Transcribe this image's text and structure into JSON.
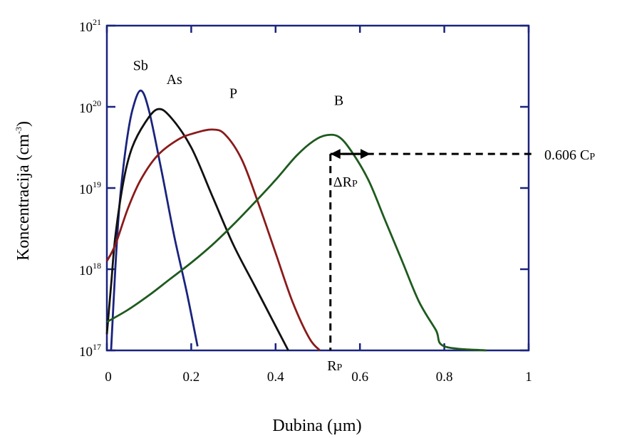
{
  "chart_data": {
    "type": "line",
    "title": "",
    "xlabel": "Dubina (µm)",
    "ylabel": "Koncentracija (cm⁻³)",
    "ylabel_parts": {
      "main": "Koncentracija (cm",
      "exp": "-3",
      "close": ")"
    },
    "yscale": "log",
    "xlim": [
      0,
      1
    ],
    "ylim": [
      1e+17,
      1e+21
    ],
    "x_ticks": [
      {
        "value": 0,
        "label": "0"
      },
      {
        "value": 0.2,
        "label": "0.2"
      },
      {
        "value": 0.4,
        "label": "0.4"
      },
      {
        "value": 0.6,
        "label": "0.6"
      },
      {
        "value": 0.8,
        "label": "0.8"
      },
      {
        "value": 1,
        "label": "1"
      }
    ],
    "y_ticks": [
      {
        "value": 17,
        "base": "10",
        "exp": "17"
      },
      {
        "value": 18,
        "base": "10",
        "exp": "18"
      },
      {
        "value": 19,
        "base": "10",
        "exp": "19"
      },
      {
        "value": 20,
        "base": "10",
        "exp": "20"
      },
      {
        "value": 21,
        "base": "10",
        "exp": "21"
      }
    ],
    "grid": false,
    "legend": "none",
    "series": [
      {
        "name": "Sb",
        "color": "#1a237e",
        "label_x": 0.08,
        "label_y_log": 20.45,
        "points": [
          [
            0.01,
            17.0
          ],
          [
            0.02,
            18.0
          ],
          [
            0.03,
            18.8
          ],
          [
            0.045,
            19.5
          ],
          [
            0.06,
            19.95
          ],
          [
            0.08,
            20.2
          ],
          [
            0.1,
            19.95
          ],
          [
            0.13,
            19.2
          ],
          [
            0.16,
            18.4
          ],
          [
            0.19,
            17.7
          ],
          [
            0.215,
            17.05
          ]
        ]
      },
      {
        "name": "As",
        "color": "#111111",
        "label_x": 0.16,
        "label_y_log": 20.28,
        "points": [
          [
            0.0,
            17.2
          ],
          [
            0.01,
            17.8
          ],
          [
            0.02,
            18.4
          ],
          [
            0.04,
            19.1
          ],
          [
            0.06,
            19.5
          ],
          [
            0.09,
            19.8
          ],
          [
            0.12,
            19.97
          ],
          [
            0.15,
            19.88
          ],
          [
            0.2,
            19.5
          ],
          [
            0.25,
            18.9
          ],
          [
            0.3,
            18.3
          ],
          [
            0.35,
            17.8
          ],
          [
            0.4,
            17.3
          ],
          [
            0.43,
            17.0
          ]
        ]
      },
      {
        "name": "P",
        "color": "#8b1a1a",
        "label_x": 0.3,
        "label_y_log": 20.11,
        "points": [
          [
            0.0,
            18.1
          ],
          [
            0.02,
            18.3
          ],
          [
            0.05,
            18.75
          ],
          [
            0.08,
            19.1
          ],
          [
            0.12,
            19.4
          ],
          [
            0.17,
            19.6
          ],
          [
            0.21,
            19.68
          ],
          [
            0.25,
            19.72
          ],
          [
            0.28,
            19.66
          ],
          [
            0.32,
            19.35
          ],
          [
            0.36,
            18.8
          ],
          [
            0.4,
            18.2
          ],
          [
            0.44,
            17.6
          ],
          [
            0.48,
            17.15
          ],
          [
            0.505,
            17.0
          ]
        ]
      },
      {
        "name": "B",
        "color": "#1e5a1e",
        "label_x": 0.55,
        "label_y_log": 20.02,
        "points": [
          [
            0.0,
            17.35
          ],
          [
            0.05,
            17.5
          ],
          [
            0.1,
            17.68
          ],
          [
            0.15,
            17.88
          ],
          [
            0.2,
            18.08
          ],
          [
            0.25,
            18.3
          ],
          [
            0.3,
            18.55
          ],
          [
            0.35,
            18.82
          ],
          [
            0.4,
            19.1
          ],
          [
            0.45,
            19.4
          ],
          [
            0.49,
            19.58
          ],
          [
            0.52,
            19.65
          ],
          [
            0.55,
            19.63
          ],
          [
            0.58,
            19.45
          ],
          [
            0.62,
            19.1
          ],
          [
            0.66,
            18.6
          ],
          [
            0.7,
            18.1
          ],
          [
            0.74,
            17.6
          ],
          [
            0.78,
            17.25
          ],
          [
            0.8,
            17.05
          ],
          [
            0.9,
            17.0
          ]
        ]
      }
    ],
    "annotations": {
      "rp_x": 0.53,
      "rp_label": "RP",
      "rp_label_parts": {
        "main": "R",
        "sub": "P"
      },
      "level_y_log": 19.42,
      "level_label": "0.606 CP",
      "level_label_parts": {
        "main": "0.606 C",
        "sub": "P"
      },
      "drp_label": "ΔRP",
      "drp_label_parts": {
        "main": "ΔR",
        "sub": "P"
      },
      "drp_end_x": 0.625
    }
  }
}
